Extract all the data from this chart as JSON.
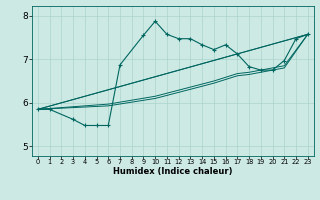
{
  "xlabel": "Humidex (Indice chaleur)",
  "xlim": [
    -0.5,
    23.5
  ],
  "ylim": [
    4.78,
    8.22
  ],
  "xticks": [
    0,
    1,
    2,
    3,
    4,
    5,
    6,
    7,
    8,
    9,
    10,
    11,
    12,
    13,
    14,
    15,
    16,
    17,
    18,
    19,
    20,
    21,
    22,
    23
  ],
  "yticks": [
    5,
    6,
    7,
    8
  ],
  "bg_color": "#cce9e4",
  "grid_color": "#aad4cc",
  "line_color": "#006660",
  "main_x": [
    0,
    1,
    3,
    4,
    5,
    6,
    7,
    9,
    10,
    11,
    12,
    13,
    14,
    15,
    16,
    17,
    18,
    19,
    20,
    21,
    22,
    23
  ],
  "main_y": [
    5.85,
    5.85,
    5.62,
    5.48,
    5.48,
    5.48,
    6.87,
    7.55,
    7.87,
    7.57,
    7.47,
    7.47,
    7.33,
    7.22,
    7.33,
    7.12,
    6.83,
    6.75,
    6.75,
    6.97,
    7.47,
    7.57
  ],
  "trend_lines": [
    {
      "x": [
        0,
        23
      ],
      "y": [
        5.85,
        7.57
      ]
    },
    {
      "x": [
        0,
        23
      ],
      "y": [
        5.85,
        7.57
      ]
    },
    {
      "x": [
        0,
        6,
        10,
        15,
        17,
        18,
        19,
        20,
        21,
        23
      ],
      "y": [
        5.85,
        5.93,
        6.1,
        6.45,
        6.62,
        6.65,
        6.7,
        6.75,
        6.8,
        7.57
      ]
    },
    {
      "x": [
        0,
        6,
        10,
        15,
        17,
        18,
        19,
        20,
        21,
        23
      ],
      "y": [
        5.85,
        5.97,
        6.15,
        6.5,
        6.67,
        6.7,
        6.75,
        6.8,
        6.85,
        7.57
      ]
    }
  ]
}
